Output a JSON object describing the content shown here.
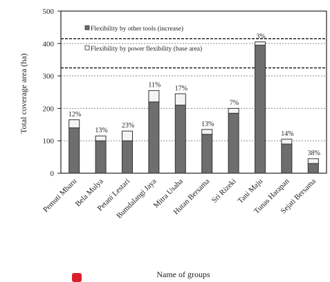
{
  "chart_data": {
    "type": "bar",
    "stacked": true,
    "xlabel": "Name of groups",
    "ylabel": "Total coverage area (ha)",
    "ylim": [
      0,
      500
    ],
    "yticks": [
      "0",
      "100",
      "200",
      "300",
      "400",
      "500"
    ],
    "grid": "horizontal dashed",
    "categories": [
      "Pemuti Mbaru",
      "Bela Mulya",
      "Petani Lestari",
      "Bumdalangi Jaya",
      "Mitra Usaha",
      "Hutan Bersama",
      "Sri Rizeki",
      "Tani Maju",
      "Tunas Harapan",
      "Sejati Bersama"
    ],
    "series": [
      {
        "name": "Flexibility by power flexibility (base area)",
        "color": "#6e6e6e",
        "values": [
          140,
          100,
          100,
          220,
          210,
          120,
          185,
          395,
          90,
          30
        ]
      },
      {
        "name": "Flexibility by other tools (increase)",
        "color": "#f4f4f4",
        "values": [
          25,
          15,
          30,
          35,
          35,
          15,
          15,
          10,
          15,
          15
        ]
      }
    ],
    "data_labels": [
      "12%",
      "13%",
      "23%",
      "11%",
      "17%",
      "13%",
      "7%",
      "3%",
      "14%",
      "38%"
    ],
    "reference_lines": [
      415,
      325
    ],
    "legend": {
      "placement": "top",
      "entries": [
        "Flexibility by other tools (increase)",
        "Flexibility by power flexibility (base area)"
      ]
    }
  },
  "colors": {
    "bar_dark": "#6e6e6e",
    "bar_light": "#f4f4f4",
    "marker": "#d9202a"
  }
}
